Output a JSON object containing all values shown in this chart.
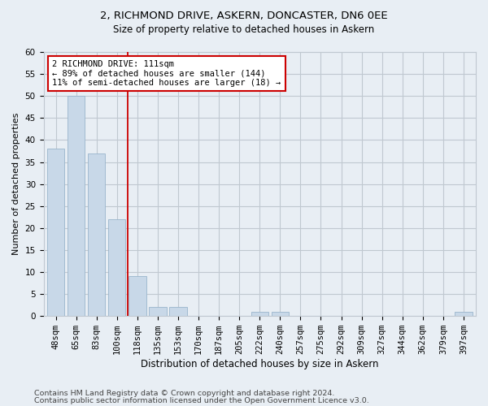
{
  "title1": "2, RICHMOND DRIVE, ASKERN, DONCASTER, DN6 0EE",
  "title2": "Size of property relative to detached houses in Askern",
  "xlabel": "Distribution of detached houses by size in Askern",
  "ylabel": "Number of detached properties",
  "categories": [
    "48sqm",
    "65sqm",
    "83sqm",
    "100sqm",
    "118sqm",
    "135sqm",
    "153sqm",
    "170sqm",
    "187sqm",
    "205sqm",
    "222sqm",
    "240sqm",
    "257sqm",
    "275sqm",
    "292sqm",
    "309sqm",
    "327sqm",
    "344sqm",
    "362sqm",
    "379sqm",
    "397sqm"
  ],
  "values": [
    38,
    50,
    37,
    22,
    9,
    2,
    2,
    0,
    0,
    0,
    1,
    1,
    0,
    0,
    0,
    0,
    0,
    0,
    0,
    0,
    1
  ],
  "bar_color": "#c8d8e8",
  "bar_edgecolor": "#9ab5cc",
  "vline_x": 3.52,
  "vline_color": "#cc0000",
  "annotation_line1": "2 RICHMOND DRIVE: 111sqm",
  "annotation_line2": "← 89% of detached houses are smaller (144)",
  "annotation_line3": "11% of semi-detached houses are larger (18) →",
  "annotation_box_edgecolor": "#cc0000",
  "annotation_fontsize": 7.5,
  "ylim": [
    0,
    60
  ],
  "yticks": [
    0,
    5,
    10,
    15,
    20,
    25,
    30,
    35,
    40,
    45,
    50,
    55,
    60
  ],
  "footer1": "Contains HM Land Registry data © Crown copyright and database right 2024.",
  "footer2": "Contains public sector information licensed under the Open Government Licence v3.0.",
  "background_color": "#e8eef4",
  "plot_background_color": "#e8eef4",
  "grid_color": "#c0c8d0",
  "title1_fontsize": 9.5,
  "title2_fontsize": 8.5,
  "xlabel_fontsize": 8.5,
  "ylabel_fontsize": 8,
  "tick_fontsize": 7.5,
  "footer_fontsize": 6.8
}
